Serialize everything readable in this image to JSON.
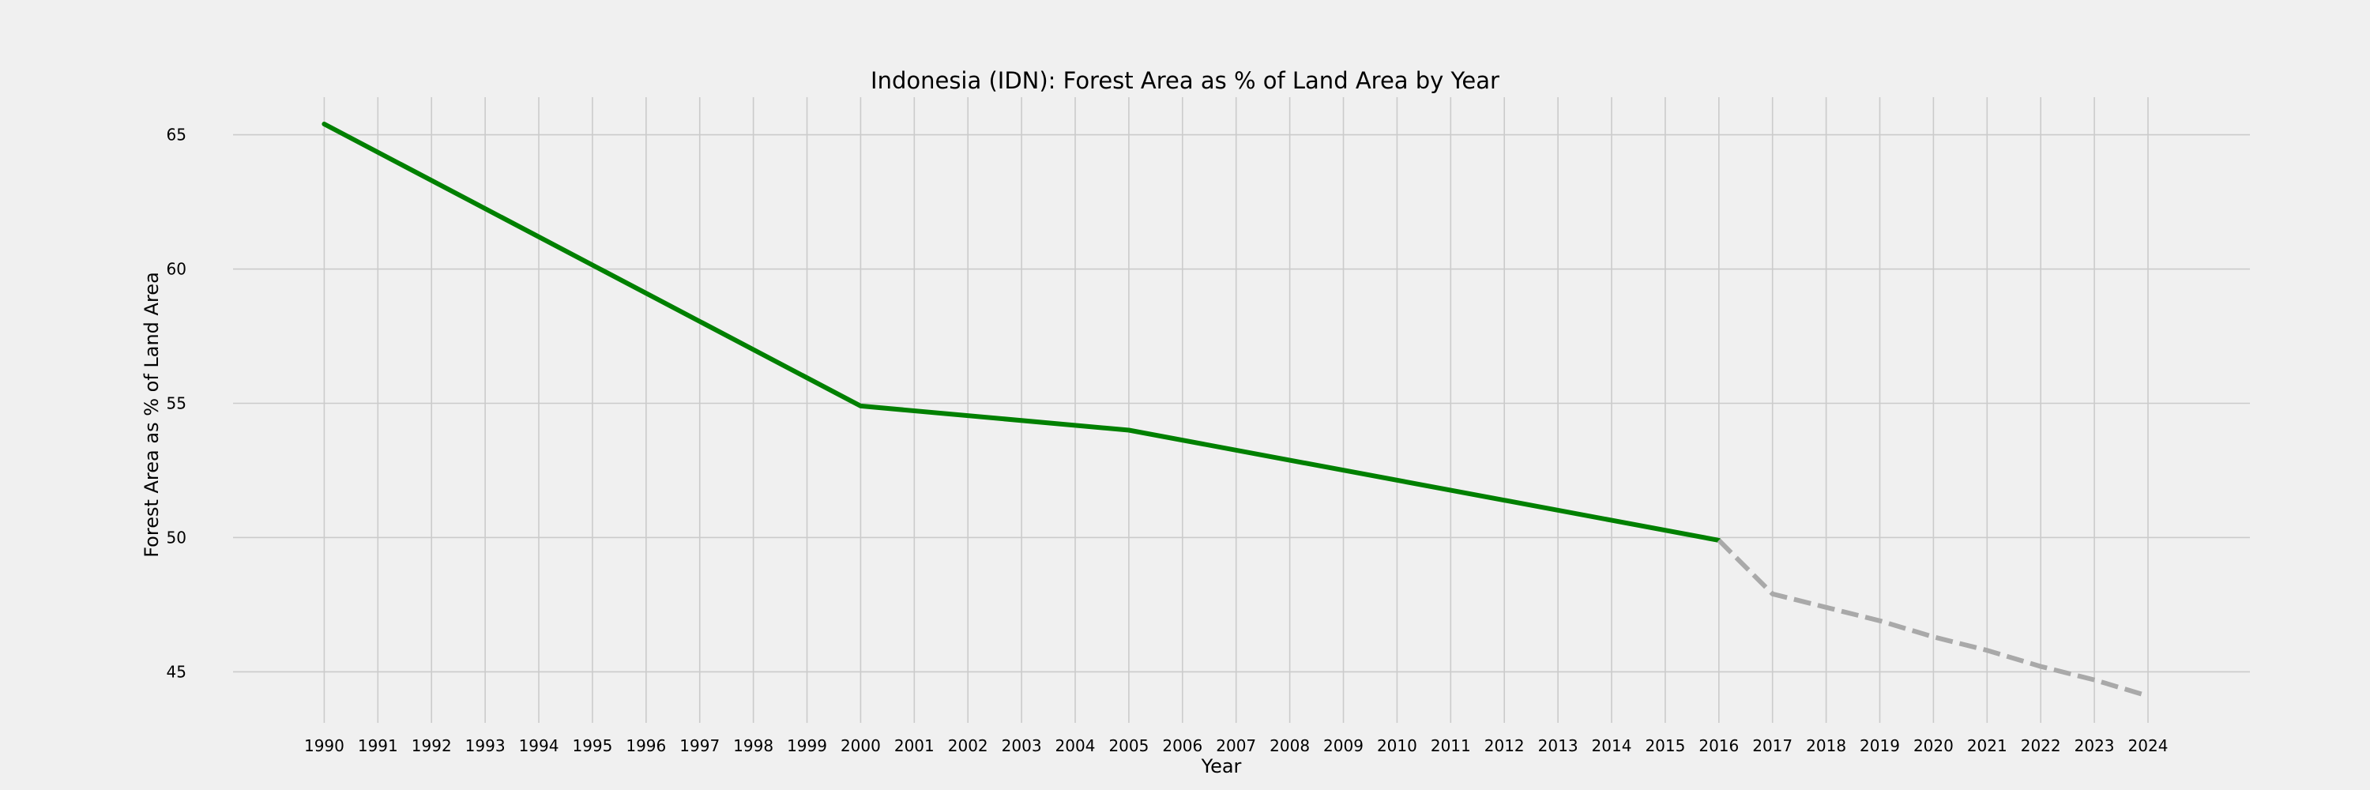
{
  "chart_data": {
    "type": "line",
    "title": "Indonesia (IDN): Forest Area as % of Land Area by Year",
    "xlabel": "Year",
    "ylabel": "Forest Area as % of Land Area",
    "xlim": [
      1988.3,
      2025.9
    ],
    "ylim": [
      43.1,
      66.4
    ],
    "x_ticks": [
      1990,
      1991,
      1992,
      1993,
      1994,
      1995,
      1996,
      1997,
      1998,
      1999,
      2000,
      2001,
      2002,
      2003,
      2004,
      2005,
      2006,
      2007,
      2008,
      2009,
      2010,
      2011,
      2012,
      2013,
      2014,
      2015,
      2016,
      2017,
      2018,
      2019,
      2020,
      2021,
      2022,
      2023,
      2024
    ],
    "y_ticks": [
      45,
      50,
      55,
      60,
      65
    ],
    "grid": true,
    "series": [
      {
        "style": "solid",
        "color": "#008000",
        "x": [
          1990,
          2000,
          2005,
          2016
        ],
        "y": [
          65.4,
          54.9,
          54.0,
          49.9
        ]
      },
      {
        "style": "dashed",
        "color": "#a9a9a9",
        "x": [
          2016,
          2017,
          2018,
          2019,
          2020,
          2021,
          2022,
          2023,
          2024
        ],
        "y": [
          49.9,
          47.9,
          47.4,
          46.9,
          46.3,
          45.8,
          45.2,
          44.7,
          44.1
        ]
      }
    ]
  }
}
